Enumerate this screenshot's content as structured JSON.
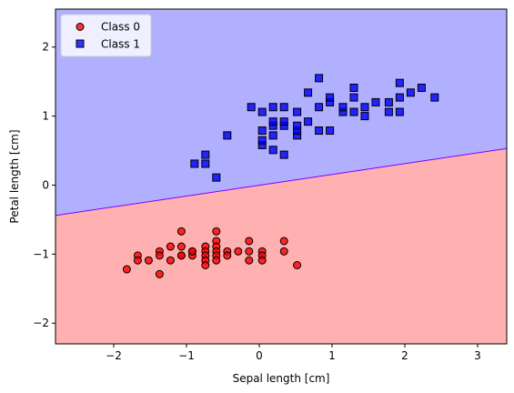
{
  "chart_data": {
    "type": "scatter",
    "xlabel": "Sepal length [cm]",
    "ylabel": "Petal length [cm]",
    "xlim": [
      -2.8,
      3.4
    ],
    "ylim": [
      -2.3,
      2.55
    ],
    "xticks": [
      -2,
      -1,
      0,
      1,
      2,
      3
    ],
    "yticks": [
      -2,
      -1,
      0,
      1,
      2
    ],
    "xtick_labels": [
      "−2",
      "−1",
      "0",
      "1",
      "2",
      "3"
    ],
    "ytick_labels": [
      "−2",
      "−1",
      "0",
      "1",
      "2"
    ],
    "legend_position": "top-left",
    "grid": false,
    "decision_boundary": {
      "x": [
        -2.8,
        3.4
      ],
      "y": [
        -0.44,
        0.53
      ]
    },
    "region_colors": {
      "class_0": "#ffb0b0",
      "class_1": "#b0b0ff",
      "boundary": "#7f00ff"
    },
    "series": [
      {
        "name": "Class 0",
        "marker": "circle",
        "color": "#ff0000",
        "points": [
          [
            -1.82,
            -1.22
          ],
          [
            -1.67,
            -1.02
          ],
          [
            -1.67,
            -1.09
          ],
          [
            -1.52,
            -1.09
          ],
          [
            -1.37,
            -0.96
          ],
          [
            -1.37,
            -1.02
          ],
          [
            -1.37,
            -1.29
          ],
          [
            -1.22,
            -0.89
          ],
          [
            -1.22,
            -1.09
          ],
          [
            -1.07,
            -0.67
          ],
          [
            -1.07,
            -0.89
          ],
          [
            -1.07,
            -1.02
          ],
          [
            -1.07,
            -1.02
          ],
          [
            -0.92,
            -0.96
          ],
          [
            -0.92,
            -1.02
          ],
          [
            -0.92,
            -0.96
          ],
          [
            -0.74,
            -0.89
          ],
          [
            -0.74,
            -0.96
          ],
          [
            -0.74,
            -1.02
          ],
          [
            -0.74,
            -1.09
          ],
          [
            -0.74,
            -1.16
          ],
          [
            -0.59,
            -0.67
          ],
          [
            -0.59,
            -0.81
          ],
          [
            -0.59,
            -0.89
          ],
          [
            -0.59,
            -0.96
          ],
          [
            -0.59,
            -1.02
          ],
          [
            -0.59,
            -1.09
          ],
          [
            -0.44,
            -0.96
          ],
          [
            -0.44,
            -1.02
          ],
          [
            -0.29,
            -0.96
          ],
          [
            -0.14,
            -0.81
          ],
          [
            -0.14,
            -0.96
          ],
          [
            -0.14,
            -1.09
          ],
          [
            0.04,
            -0.96
          ],
          [
            0.04,
            -1.02
          ],
          [
            0.04,
            -1.09
          ],
          [
            0.34,
            -0.81
          ],
          [
            0.34,
            -0.96
          ],
          [
            0.52,
            -1.16
          ]
        ]
      },
      {
        "name": "Class 1",
        "marker": "square",
        "color": "#0000ff",
        "points": [
          [
            -0.89,
            0.31
          ],
          [
            -0.74,
            0.31
          ],
          [
            -0.74,
            0.44
          ],
          [
            -0.59,
            0.11
          ],
          [
            -0.44,
            0.72
          ],
          [
            -0.11,
            1.13
          ],
          [
            0.04,
            0.58
          ],
          [
            0.04,
            0.65
          ],
          [
            0.04,
            0.79
          ],
          [
            0.04,
            1.06
          ],
          [
            0.19,
            0.51
          ],
          [
            0.19,
            0.72
          ],
          [
            0.19,
            0.86
          ],
          [
            0.19,
            0.92
          ],
          [
            0.19,
            1.13
          ],
          [
            0.34,
            0.44
          ],
          [
            0.34,
            0.86
          ],
          [
            0.34,
            0.92
          ],
          [
            0.34,
            1.13
          ],
          [
            0.52,
            0.72
          ],
          [
            0.52,
            0.79
          ],
          [
            0.52,
            0.86
          ],
          [
            0.52,
            1.06
          ],
          [
            0.67,
            0.92
          ],
          [
            0.67,
            1.34
          ],
          [
            0.82,
            0.79
          ],
          [
            0.82,
            1.13
          ],
          [
            0.82,
            1.55
          ],
          [
            0.97,
            0.79
          ],
          [
            0.97,
            1.2
          ],
          [
            0.97,
            1.27
          ],
          [
            1.15,
            1.06
          ],
          [
            1.15,
            1.13
          ],
          [
            1.3,
            1.06
          ],
          [
            1.3,
            1.27
          ],
          [
            1.3,
            1.41
          ],
          [
            1.45,
            1.0
          ],
          [
            1.45,
            1.13
          ],
          [
            1.6,
            1.2
          ],
          [
            1.78,
            1.06
          ],
          [
            1.78,
            1.2
          ],
          [
            1.93,
            1.06
          ],
          [
            1.93,
            1.27
          ],
          [
            1.93,
            1.48
          ],
          [
            2.08,
            1.34
          ],
          [
            2.23,
            1.41
          ],
          [
            2.41,
            1.27
          ]
        ]
      }
    ]
  }
}
